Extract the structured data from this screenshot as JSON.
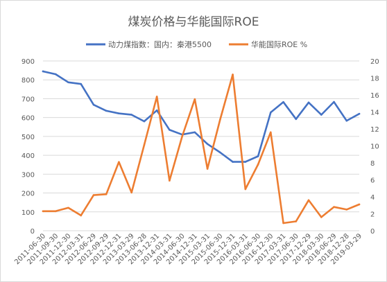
{
  "chart_data": {
    "type": "line",
    "title": "煤炭价格与华能国际ROE",
    "x": [
      "2011-06-30",
      "2011-09-30",
      "2011-12-30",
      "2012-03-31",
      "2012-06-29",
      "2012-09-29",
      "2012-12-31",
      "2013-03-29",
      "2013-06-28",
      "2013-12-31",
      "2014-03-31",
      "2014-06-30",
      "2014-12-31",
      "2015-03-31",
      "2015-06-30",
      "2015-12-31",
      "2016-03-31",
      "2016-06-30",
      "2016-12-30",
      "2017-03-31",
      "2017-06-30",
      "2017-12-29",
      "2018-03-30",
      "2018-06-29",
      "2018-12-28",
      "2019-03-29"
    ],
    "series": [
      {
        "name": "动力煤指数：国内：秦港5500",
        "axis": "left",
        "color": "#4472c4",
        "values": [
          845,
          830,
          787,
          778,
          668,
          636,
          622,
          615,
          580,
          638,
          535,
          510,
          522,
          460,
          415,
          365,
          365,
          395,
          627,
          682,
          592,
          680,
          615,
          683,
          583,
          620
        ]
      },
      {
        "name": "华能国际ROE %",
        "axis": "right",
        "color": "#ed7d31",
        "values": [
          2.3,
          2.3,
          2.7,
          1.8,
          4.2,
          4.3,
          8.1,
          4.5,
          10.1,
          15.8,
          5.9,
          11.1,
          15.5,
          7.3,
          13.1,
          18.4,
          4.9,
          7.8,
          11.6,
          0.9,
          1.1,
          3.6,
          1.6,
          2.8,
          2.5,
          3.1
        ]
      }
    ],
    "y_left": {
      "lim": [
        0,
        900
      ],
      "ticks": [
        "0",
        "100",
        "200",
        "300",
        "400",
        "500",
        "600",
        "700",
        "800",
        "900"
      ]
    },
    "y_right": {
      "lim": [
        0,
        20
      ],
      "ticks": [
        "0",
        "2",
        "4",
        "6",
        "8",
        "10",
        "12",
        "14",
        "16",
        "18",
        "20"
      ]
    },
    "grid": true,
    "legend": "top-center"
  }
}
